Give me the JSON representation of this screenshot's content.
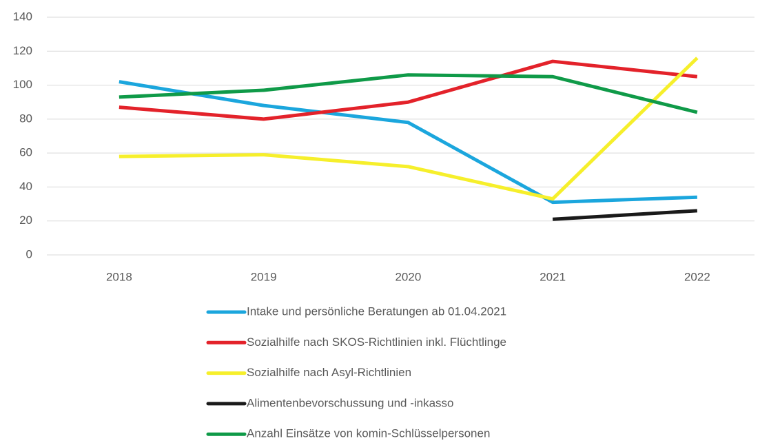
{
  "chart_data": {
    "type": "line",
    "categories": [
      "2018",
      "2019",
      "2020",
      "2021",
      "2022"
    ],
    "series": [
      {
        "name": "Intake und persönliche Beratungen ab 01.04.2021",
        "color": "#1ba6dd",
        "values": [
          102,
          88,
          78,
          31,
          34
        ]
      },
      {
        "name": "Sozialhilfe nach SKOS-Richtlinien inkl. Flüchtlinge",
        "color": "#e3222a",
        "values": [
          87,
          80,
          90,
          114,
          105
        ]
      },
      {
        "name": "Sozialhilfe nach Asyl-Richtlinien",
        "color": "#f6ef2b",
        "values": [
          58,
          59,
          52,
          33,
          116
        ]
      },
      {
        "name": "Alimentenbevorschussung und -inkasso",
        "color": "#1a1a1a",
        "values": [
          null,
          null,
          null,
          21,
          26
        ]
      },
      {
        "name": "Anzahl Einsätze von komin-Schlüsselpersonen",
        "color": "#0f9a48",
        "values": [
          93,
          97,
          106,
          105,
          84
        ]
      }
    ],
    "ylim": [
      0,
      140
    ],
    "yticks": [
      0,
      20,
      40,
      60,
      80,
      100,
      120,
      140
    ],
    "grid": true,
    "legend": "bottom"
  }
}
